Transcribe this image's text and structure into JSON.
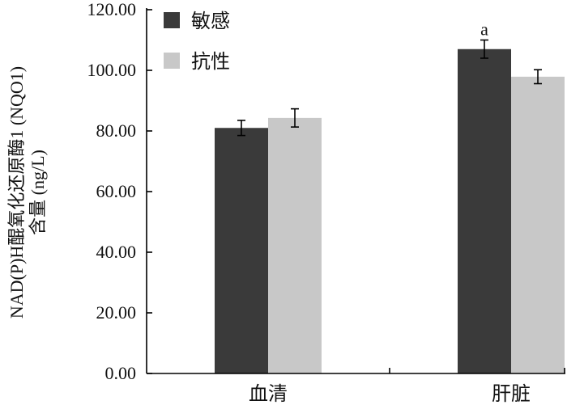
{
  "chart_data": {
    "type": "bar",
    "categories": [
      "血清",
      "肝脏"
    ],
    "series": [
      {
        "name": "敏感",
        "color": "#3a3a3a",
        "values": [
          81.0,
          107.0
        ],
        "errors": [
          2.5,
          3.0
        ]
      },
      {
        "name": "抗性",
        "color": "#c8c8c8",
        "values": [
          84.3,
          97.9
        ],
        "errors": [
          3.0,
          2.3
        ]
      }
    ],
    "ylabel_lines": [
      "NAD(P)H醌氧化还原酶1 (NQO1)",
      "含量 (ng/L)"
    ],
    "xlabel": "",
    "ylim": [
      0,
      120
    ],
    "y_ticks": [
      "0.00",
      "20.00",
      "40.00",
      "60.00",
      "80.00",
      "100.00",
      "120.00"
    ],
    "annotations": [
      {
        "text": "a",
        "category_index": 1,
        "series_index": 0
      }
    ],
    "legend_position": "top-left",
    "grid": false
  }
}
